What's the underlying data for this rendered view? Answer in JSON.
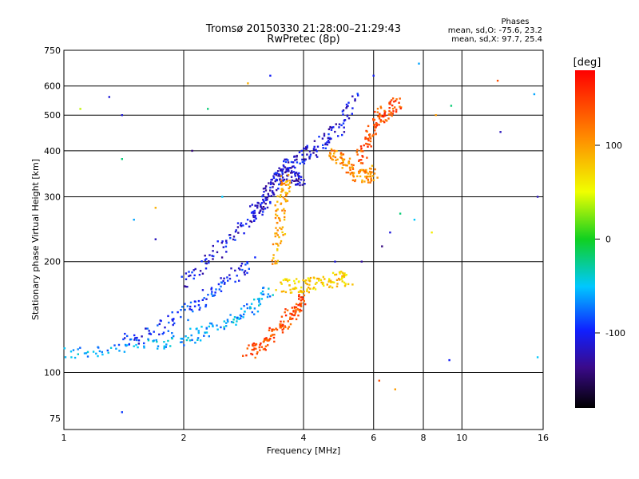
{
  "chart_data": {
    "type": "scatter",
    "title": "Tromsø 20150330 21:28:00–21:29:43",
    "subtitle": "RwPretec (8p)",
    "xlabel": "Frequency [MHz]",
    "ylabel": "Stationary phase Virtual Height [km]",
    "x_scale": "log",
    "y_scale": "log",
    "xlim": [
      1,
      16
    ],
    "ylim": [
      70,
      750
    ],
    "x_ticks": [
      1,
      2,
      4,
      6,
      8,
      10,
      16
    ],
    "y_ticks": [
      75,
      100,
      200,
      300,
      400,
      500,
      600,
      750
    ],
    "grid": true,
    "stats": {
      "heading": "Phases",
      "o_line": "mean, sd,O: -75.6, 23.2",
      "x_line": "mean, sd,X:  97.7, 25.4"
    },
    "colorbar": {
      "label": "[deg]",
      "min": -180,
      "max": 180,
      "ticks": [
        {
          "value": 100,
          "label": "100"
        },
        {
          "value": 0,
          "label": "0"
        },
        {
          "value": -100,
          "label": "-100"
        }
      ]
    },
    "traces": [
      {
        "x": [
          1.0,
          1.3,
          1.7,
          2.0,
          2.3,
          2.7,
          3.0,
          3.3
        ],
        "y": [
          112,
          116,
          120,
          124,
          130,
          140,
          152,
          168
        ],
        "phase": -60
      },
      {
        "x": [
          1.4,
          1.7,
          2.0,
          2.3,
          2.6,
          3.0
        ],
        "y": [
          120,
          130,
          145,
          162,
          180,
          200
        ],
        "phase": -95
      },
      {
        "x": [
          2.0,
          2.3,
          2.6,
          3.0,
          3.3,
          3.6,
          3.9,
          4.2,
          4.6,
          5.0,
          5.4
        ],
        "y": [
          175,
          200,
          230,
          270,
          320,
          360,
          385,
          400,
          430,
          470,
          560
        ],
        "phase": -110
      },
      {
        "x": [
          3.0,
          3.2,
          3.4,
          3.6,
          3.8,
          4.0
        ],
        "y": [
          260,
          290,
          330,
          350,
          340,
          330
        ],
        "phase": -115
      },
      {
        "x": [
          2.9,
          3.1,
          3.3,
          3.5,
          3.7,
          3.9,
          4.0
        ],
        "y": [
          113,
          118,
          125,
          133,
          142,
          150,
          158
        ],
        "phase": 140
      },
      {
        "x": [
          3.5,
          3.8,
          4.1,
          4.5,
          4.9,
          5.2
        ],
        "y": [
          172,
          172,
          172,
          175,
          180,
          178
        ],
        "phase": 75
      },
      {
        "x": [
          4.6,
          4.9,
          5.2,
          5.5,
          5.8,
          6.0
        ],
        "y": [
          390,
          380,
          360,
          340,
          340,
          350
        ],
        "phase": 110
      },
      {
        "x": [
          5.5,
          5.8,
          6.0,
          6.3,
          6.6,
          7.0
        ],
        "y": [
          380,
          420,
          470,
          500,
          520,
          540
        ],
        "phase": 140
      },
      {
        "x": [
          3.4,
          3.5,
          3.5,
          3.6,
          3.6
        ],
        "y": [
          200,
          240,
          280,
          320,
          330
        ],
        "phase": 95
      }
    ],
    "scatter_points": [
      {
        "x": 1.1,
        "y": 520,
        "phase": 40
      },
      {
        "x": 1.3,
        "y": 560,
        "phase": -110
      },
      {
        "x": 1.4,
        "y": 500,
        "phase": -110
      },
      {
        "x": 1.4,
        "y": 380,
        "phase": -20
      },
      {
        "x": 1.5,
        "y": 260,
        "phase": -60
      },
      {
        "x": 1.7,
        "y": 280,
        "phase": 90
      },
      {
        "x": 1.7,
        "y": 230,
        "phase": -120
      },
      {
        "x": 2.1,
        "y": 400,
        "phase": -140
      },
      {
        "x": 2.3,
        "y": 520,
        "phase": -20
      },
      {
        "x": 2.5,
        "y": 300,
        "phase": -50
      },
      {
        "x": 2.9,
        "y": 610,
        "phase": 90
      },
      {
        "x": 3.3,
        "y": 640,
        "phase": -100
      },
      {
        "x": 4.8,
        "y": 200,
        "phase": -110
      },
      {
        "x": 5.6,
        "y": 200,
        "phase": -130
      },
      {
        "x": 6.0,
        "y": 640,
        "phase": -100
      },
      {
        "x": 6.3,
        "y": 220,
        "phase": -140
      },
      {
        "x": 6.6,
        "y": 240,
        "phase": -110
      },
      {
        "x": 7.0,
        "y": 270,
        "phase": -20
      },
      {
        "x": 7.6,
        "y": 260,
        "phase": -50
      },
      {
        "x": 7.8,
        "y": 690,
        "phase": -60
      },
      {
        "x": 8.4,
        "y": 240,
        "phase": 60
      },
      {
        "x": 8.6,
        "y": 500,
        "phase": 100
      },
      {
        "x": 9.4,
        "y": 530,
        "phase": -20
      },
      {
        "x": 12.3,
        "y": 620,
        "phase": 140
      },
      {
        "x": 12.5,
        "y": 450,
        "phase": -120
      },
      {
        "x": 15.2,
        "y": 570,
        "phase": -60
      },
      {
        "x": 15.5,
        "y": 300,
        "phase": -120
      },
      {
        "x": 15.5,
        "y": 110,
        "phase": -50
      },
      {
        "x": 6.2,
        "y": 95,
        "phase": 140
      },
      {
        "x": 6.8,
        "y": 90,
        "phase": 100
      },
      {
        "x": 1.4,
        "y": 78,
        "phase": -90
      },
      {
        "x": 9.3,
        "y": 108,
        "phase": -100
      }
    ]
  }
}
